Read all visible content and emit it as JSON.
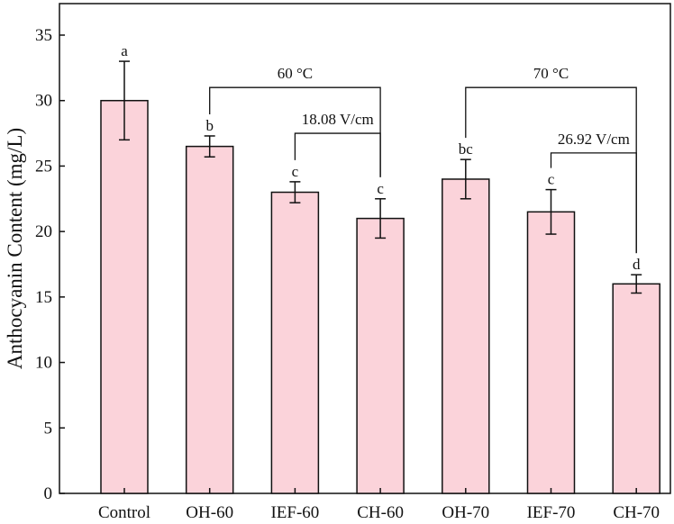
{
  "chart_data": {
    "type": "bar",
    "title": "",
    "xlabel": "",
    "ylabel": "Anthocyanin Content (mg/L)",
    "ylim": [
      0,
      37
    ],
    "yticks": [
      0,
      5,
      10,
      15,
      20,
      25,
      30,
      35
    ],
    "categories": [
      "Control",
      "OH-60",
      "IEF-60",
      "CH-60",
      "OH-70",
      "IEF-70",
      "CH-70"
    ],
    "values": [
      30.0,
      26.5,
      23.0,
      21.0,
      24.0,
      21.5,
      16.0
    ],
    "errors": [
      3.0,
      0.8,
      0.8,
      1.5,
      1.5,
      1.7,
      0.7
    ],
    "significance_letters": [
      "a",
      "b",
      "c",
      "c",
      "bc",
      "c",
      "d"
    ],
    "grid": false,
    "bar_color": "#fbd3da",
    "edge_color": "#111111",
    "brackets": [
      {
        "label": "60 °C",
        "from": "OH-60",
        "to": "CH-60",
        "top": 31.0
      },
      {
        "label": "18.08 V/cm",
        "from": "IEF-60",
        "to": "CH-60",
        "top": 27.5
      },
      {
        "label": "70 °C",
        "from": "OH-70",
        "to": "CH-70",
        "top": 31.0
      },
      {
        "label": "26.92 V/cm",
        "from": "IEF-70",
        "to": "CH-70",
        "top": 26.0
      }
    ]
  }
}
